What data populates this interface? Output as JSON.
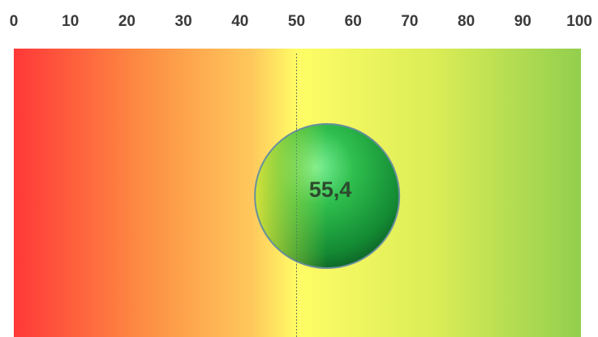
{
  "chart_data": {
    "type": "gauge",
    "xlim": [
      0,
      100
    ],
    "xticks": [
      0,
      10,
      20,
      30,
      40,
      50,
      60,
      70,
      80,
      90,
      100
    ],
    "values": [
      55.4
    ],
    "value_labels": [
      "55,4"
    ],
    "reference": 50
  }
}
